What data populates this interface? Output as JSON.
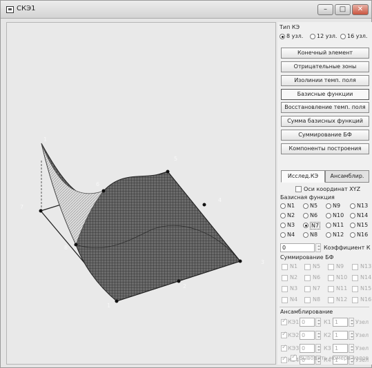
{
  "window": {
    "title": "СКЭ1",
    "controls": [
      "–",
      "□",
      "✕"
    ]
  },
  "canvas": {
    "node_labels": [
      "1",
      "2",
      "3",
      "4",
      "5",
      "6",
      "7",
      "8",
      "1"
    ]
  },
  "panel": {
    "fe_type": {
      "label": "Тип КЭ",
      "options": [
        "8 узл.",
        "12 узл.",
        "16 узл."
      ],
      "selected": "8 узл."
    },
    "buttons": [
      "Конечный элемент",
      "Отрицательные зоны",
      "Изолинии темп. поля",
      "Базисные функции",
      "Восстановление темп. поля",
      "Сумма базисных функций",
      "Суммирование БФ",
      "Компоненты построения"
    ],
    "pressed_button": "Базисные функции",
    "tabs": [
      "Исслед.КЭ",
      "Ансамблир."
    ],
    "axes_checkbox": "Оси координат XYZ",
    "basis": {
      "label": "Базисная функция",
      "options": [
        "N1",
        "N5",
        "N9",
        "N13",
        "N2",
        "N6",
        "N10",
        "N14",
        "N3",
        "N7",
        "N11",
        "N15",
        "N4",
        "N8",
        "N12",
        "N16"
      ],
      "selected": "N7"
    },
    "coef": {
      "value": "0",
      "label": "Коэффициент К"
    },
    "summation": {
      "label": "Суммирование БФ",
      "items": [
        "N1",
        "N5",
        "N9",
        "N13",
        "N2",
        "N6",
        "N10",
        "N14",
        "N3",
        "N7",
        "N11",
        "N15",
        "N4",
        "N8",
        "N12",
        "N16"
      ]
    },
    "assembly": {
      "label": "Ансамблирование",
      "rows": [
        {
          "ke": "КЭ1",
          "ke_val": "0",
          "k": "К1",
          "k_val": "1",
          "node": "Узел"
        },
        {
          "ke": "КЭ2",
          "ke_val": "0",
          "k": "К2",
          "k_val": "1",
          "node": "Узел"
        },
        {
          "ke": "КЭ3",
          "ke_val": "0",
          "k": "К3",
          "k_val": "1",
          "node": "Узел"
        },
        {
          "ke": "КЭ4",
          "ke_val": "0",
          "k": "К4",
          "k_val": "1",
          "node": "Узел"
        }
      ],
      "show_nodes": "Выводить номера узлов"
    }
  }
}
